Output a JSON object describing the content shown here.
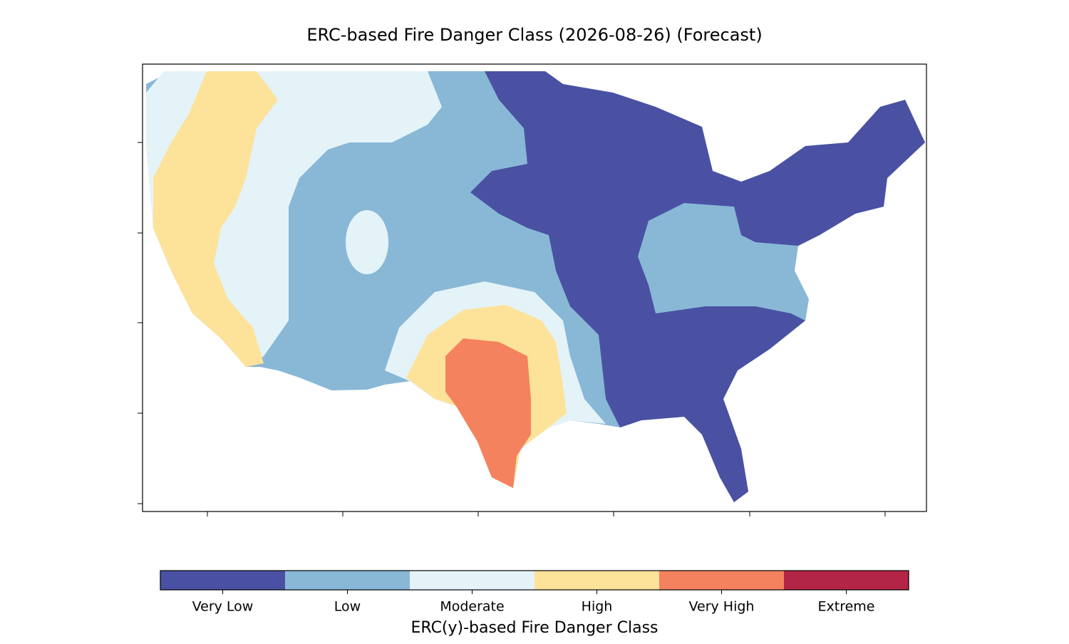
{
  "title": "ERC-based Fire Danger Class (2026-08-26) (Forecast)",
  "legend": {
    "title": "ERC(y)-based Fire Danger Class",
    "classes": [
      {
        "label": "Very Low",
        "color": "#4a51a3"
      },
      {
        "label": "Low",
        "color": "#89b8d7"
      },
      {
        "label": "Moderate",
        "color": "#e4f3f8"
      },
      {
        "label": "High",
        "color": "#fde29a"
      },
      {
        "label": "Very High",
        "color": "#f4825e"
      },
      {
        "label": "Extreme",
        "color": "#b22546"
      }
    ]
  }
}
